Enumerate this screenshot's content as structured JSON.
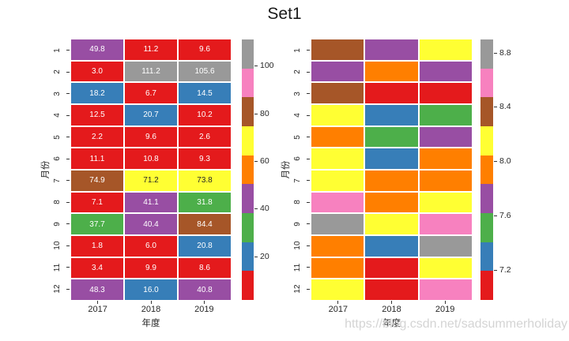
{
  "title": "Set1",
  "watermark": "https://blog.csdn.net/sadsummerholiday",
  "palette": {
    "red": "#e41a1c",
    "blue": "#377eb8",
    "green": "#4daf4a",
    "purple": "#984ea3",
    "orange": "#ff7f00",
    "yellow": "#ffff33",
    "brown": "#a65628",
    "pink": "#f781bf",
    "gray": "#999999"
  },
  "colormap_order_bottom_to_top": [
    "red",
    "blue",
    "green",
    "purple",
    "orange",
    "yellow",
    "brown",
    "pink",
    "gray"
  ],
  "dark_text_cell_colors": [
    "yellow"
  ],
  "annot_text_light": "#ffffff",
  "annot_text_dark": "#262626",
  "chart_data": [
    {
      "type": "heatmap",
      "name": "annotated-heatmap",
      "xlabel": "年度",
      "ylabel": "月份",
      "x": [
        "2017",
        "2018",
        "2019"
      ],
      "y": [
        "1",
        "2",
        "3",
        "4",
        "5",
        "6",
        "7",
        "8",
        "9",
        "10",
        "11",
        "12"
      ],
      "values": [
        [
          49.8,
          11.2,
          9.6
        ],
        [
          3.0,
          111.2,
          105.6
        ],
        [
          18.2,
          6.7,
          14.5
        ],
        [
          12.5,
          20.7,
          10.2
        ],
        [
          2.2,
          9.6,
          2.6
        ],
        [
          11.1,
          10.8,
          9.3
        ],
        [
          74.9,
          71.2,
          73.8
        ],
        [
          7.1,
          41.1,
          31.8
        ],
        [
          37.7,
          40.4,
          84.4
        ],
        [
          1.8,
          6.0,
          20.8
        ],
        [
          3.4,
          9.9,
          8.6
        ],
        [
          48.3,
          16.0,
          40.8
        ]
      ],
      "annotated": true,
      "annot_decimals": 1,
      "vmin": 1.8,
      "vmax": 111.2,
      "colorbar_tick_values": [
        100,
        80,
        60,
        40,
        20
      ],
      "colorbar_tick_labels": [
        "100",
        "80",
        "60",
        "40",
        "20"
      ]
    },
    {
      "type": "heatmap",
      "name": "unannotated-heatmap",
      "xlabel": "年度",
      "ylabel": "月份",
      "x": [
        "2017",
        "2018",
        "2019"
      ],
      "y": [
        "1",
        "2",
        "3",
        "4",
        "5",
        "6",
        "7",
        "8",
        "9",
        "10",
        "11",
        "12"
      ],
      "annotated": false,
      "vmin": 6.98,
      "vmax": 8.9,
      "cell_colors": [
        [
          "brown",
          "purple",
          "yellow"
        ],
        [
          "purple",
          "orange",
          "purple"
        ],
        [
          "brown",
          "red",
          "red"
        ],
        [
          "yellow",
          "blue",
          "green"
        ],
        [
          "orange",
          "green",
          "purple"
        ],
        [
          "yellow",
          "blue",
          "orange"
        ],
        [
          "yellow",
          "orange",
          "orange"
        ],
        [
          "pink",
          "orange",
          "yellow"
        ],
        [
          "gray",
          "yellow",
          "pink"
        ],
        [
          "orange",
          "blue",
          "gray"
        ],
        [
          "orange",
          "red",
          "yellow"
        ],
        [
          "yellow",
          "red",
          "pink"
        ]
      ],
      "colorbar_tick_values": [
        8.8,
        8.4,
        8.0,
        7.6,
        7.2
      ],
      "colorbar_tick_labels": [
        "8.8",
        "8.4",
        "8.0",
        "7.6",
        "7.2"
      ]
    }
  ]
}
